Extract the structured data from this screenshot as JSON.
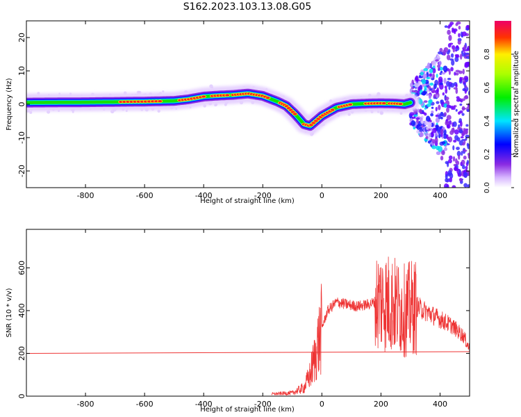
{
  "title": "S162.2023.103.13.08.G05",
  "colors": {
    "snr_line": "#ee3333",
    "reference_line": "#ee3333",
    "spectrum_core": "#ff2020"
  },
  "chart_data": [
    {
      "type": "heatmap",
      "xlabel": "Height of straight line (km)",
      "ylabel": "Frequency (Hz)",
      "xlim": [
        -1000,
        500
      ],
      "ylim": [
        -25,
        25
      ],
      "xticks": [
        -800,
        -600,
        -400,
        -200,
        0,
        200,
        400
      ],
      "yticks": [
        -20,
        -10,
        0,
        10,
        20
      ],
      "grid": false,
      "colorbar": {
        "label": "Normalized spectral amplitude",
        "ticks": [
          "0.0",
          "0.2",
          "0.4",
          "0.6",
          "0.8"
        ],
        "range": [
          0,
          1
        ],
        "colormap": "rainbow"
      },
      "ridge": {
        "x": [
          -1000,
          -800,
          -600,
          -500,
          -450,
          -400,
          -350,
          -300,
          -250,
          -200,
          -150,
          -120,
          -90,
          -60,
          -40,
          -20,
          0,
          50,
          100,
          150,
          200,
          250,
          280,
          300,
          350,
          400,
          430
        ],
        "frequency": [
          0.5,
          0.6,
          0.8,
          1.0,
          1.5,
          2.3,
          2.6,
          2.8,
          3.2,
          2.5,
          0.8,
          -0.5,
          -3.0,
          -6.0,
          -6.5,
          -5.0,
          -3.5,
          -1.0,
          0.0,
          0.2,
          0.3,
          0.2,
          0.0,
          0.5,
          1.0,
          0.5,
          0.0
        ]
      }
    },
    {
      "type": "line",
      "xlabel": "Height of straight line (km)",
      "ylabel": "SNR (10 * v/v)",
      "xlim": [
        -1000,
        500
      ],
      "ylim": [
        0,
        780
      ],
      "xticks": [
        -800,
        -600,
        -400,
        -200,
        0,
        200,
        400
      ],
      "yticks": [
        0,
        200,
        400,
        600
      ],
      "grid": false,
      "series": [
        {
          "x": [
            -170,
            -100,
            -60,
            -40,
            -20,
            0,
            20,
            50,
            80,
            120,
            160,
            200,
            240,
            280,
            320,
            360,
            400,
            440,
            480,
            500
          ],
          "values": [
            10,
            15,
            40,
            100,
            200,
            320,
            400,
            440,
            430,
            420,
            430,
            450,
            430,
            400,
            420,
            390,
            360,
            330,
            280,
            220
          ]
        },
        {
          "x": [
            -1000,
            500
          ],
          "values": [
            200,
            208
          ]
        }
      ]
    }
  ]
}
